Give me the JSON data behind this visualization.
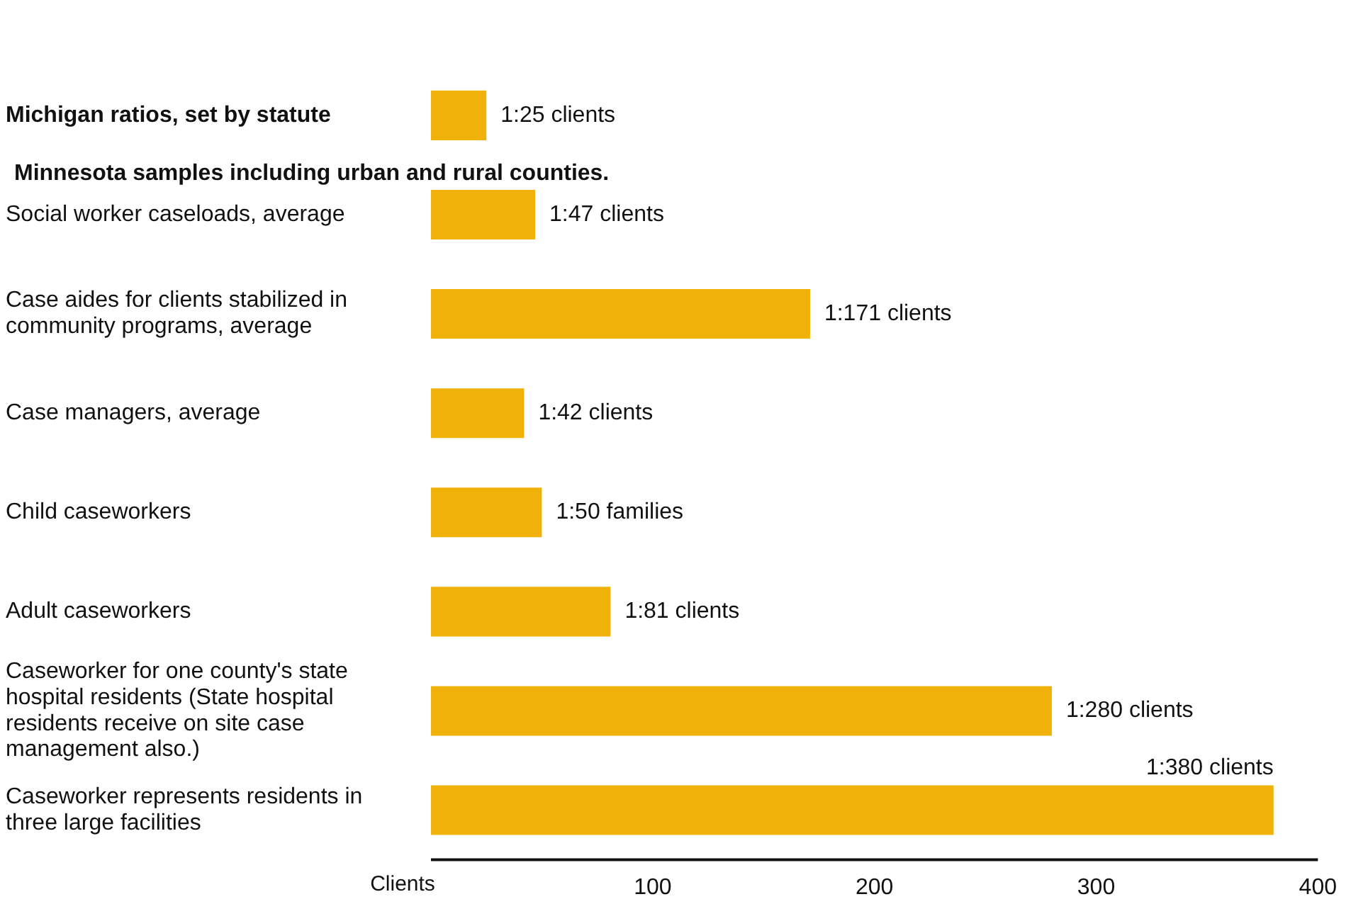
{
  "chart_data": {
    "type": "bar",
    "orientation": "horizontal",
    "categories": [
      "Michigan ratios, set by statute",
      "Social worker caseloads, average",
      "Case aides for clients stabilized in community programs, average",
      "Case managers, average",
      "Child caseworkers",
      "Adult caseworkers",
      "Caseworker for one county's state hospital residents (State hospital residents receive on site case management also.)",
      "Caseworker represents residents in three large facilities"
    ],
    "values": [
      25,
      47,
      171,
      42,
      50,
      81,
      280,
      380
    ],
    "value_labels": [
      "1:25 clients",
      "1:47 clients",
      "1:171 clients",
      "1:42 clients",
      "1:50 families",
      "1:81 clients",
      "1:280 clients",
      "1:380 clients"
    ],
    "color": "#f0b20a",
    "xlim": [
      0,
      400
    ],
    "xticks": [
      100,
      200,
      300,
      400
    ],
    "xlabel": "Clients",
    "annotations": [
      "Minnesota samples including urban and rural counties."
    ],
    "grid": false,
    "legend": false
  }
}
